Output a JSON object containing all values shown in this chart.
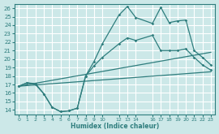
{
  "xlabel": "Humidex (Indice chaleur)",
  "bg_color": "#cce8e8",
  "grid_color": "#ffffff",
  "line_color": "#2e7d7d",
  "xlim": [
    -0.5,
    23.5
  ],
  "ylim": [
    13.5,
    26.5
  ],
  "xticks": [
    0,
    1,
    2,
    3,
    4,
    5,
    6,
    7,
    8,
    9,
    10,
    12,
    13,
    14,
    16,
    17,
    18,
    19,
    20,
    21,
    22,
    23
  ],
  "yticks": [
    14,
    15,
    16,
    17,
    18,
    19,
    20,
    21,
    22,
    23,
    24,
    25,
    26
  ],
  "line1_x": [
    0,
    1,
    2,
    3,
    4,
    5,
    6,
    7,
    8,
    9,
    10,
    12,
    13,
    14,
    16,
    17,
    18,
    19,
    20,
    21,
    22,
    23
  ],
  "line1_y": [
    16.8,
    17.2,
    17.1,
    15.9,
    14.3,
    13.8,
    13.9,
    14.2,
    18.0,
    19.7,
    21.8,
    25.2,
    26.2,
    24.9,
    24.2,
    26.1,
    24.3,
    24.5,
    24.6,
    21.0,
    20.2,
    19.3
  ],
  "line2_x": [
    0,
    1,
    2,
    3,
    4,
    5,
    6,
    7,
    8,
    9,
    10,
    12,
    13,
    14,
    16,
    17,
    18,
    19,
    20,
    21,
    22,
    23
  ],
  "line2_y": [
    16.8,
    17.2,
    17.0,
    15.9,
    14.3,
    13.8,
    13.9,
    14.2,
    18.0,
    19.2,
    20.2,
    21.8,
    22.5,
    22.2,
    22.8,
    21.0,
    21.0,
    21.0,
    21.2,
    20.2,
    19.3,
    18.7
  ],
  "line3_x": [
    0,
    23
  ],
  "line3_y": [
    16.8,
    18.5
  ],
  "line4_x": [
    0,
    23
  ],
  "line4_y": [
    16.8,
    20.8
  ]
}
